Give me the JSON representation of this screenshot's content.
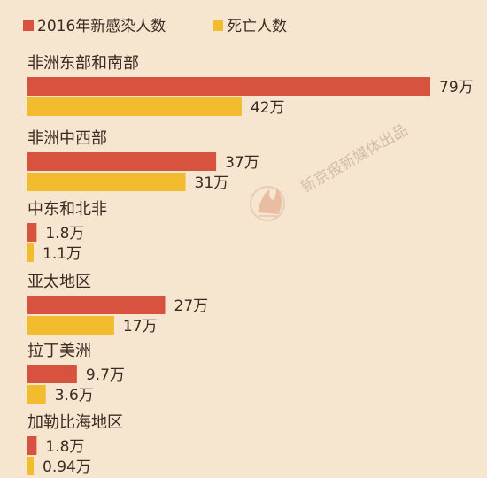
{
  "chart_data": {
    "type": "bar",
    "orientation": "horizontal",
    "title": "",
    "xlabel": "",
    "ylabel": "",
    "legend_position": "top-left",
    "categories": [
      "非洲东部和南部",
      "非洲中西部",
      "中东和北非",
      "亚太地区",
      "拉丁美洲",
      "加勒比海地区"
    ],
    "series": [
      {
        "name": "2016年新感染人数",
        "color": "#d8533f",
        "values": [
          79,
          37,
          1.8,
          27,
          9.7,
          1.8
        ],
        "labels": [
          "79万",
          "37万",
          "1.8万",
          "27万",
          "9.7万",
          "1.8万"
        ]
      },
      {
        "name": "死亡人数",
        "color": "#f3bb2e",
        "values": [
          42,
          31,
          1.1,
          17,
          3.6,
          0.94
        ],
        "labels": [
          "42万",
          "31万",
          "1.1万",
          "17万",
          "3.6万",
          "0.94万"
        ]
      }
    ],
    "xlim": [
      0,
      79
    ],
    "grid": false
  },
  "watermark": {
    "text": "新京报新媒体出品",
    "color": "#cdb7a2"
  }
}
